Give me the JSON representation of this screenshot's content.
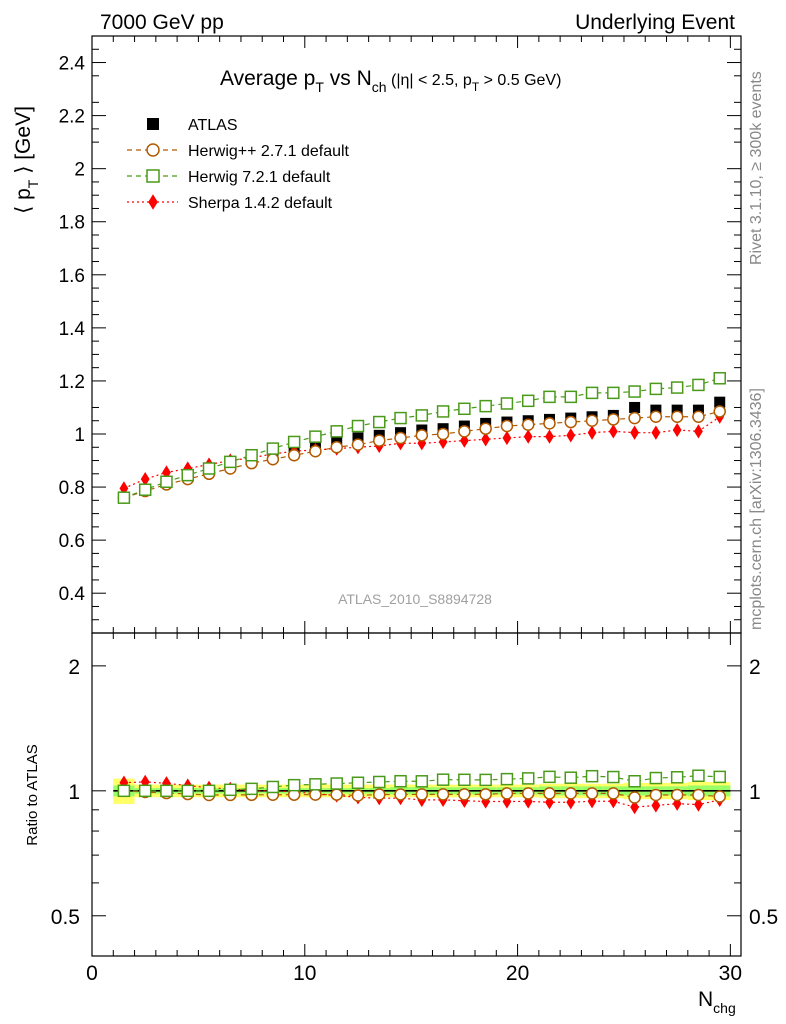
{
  "header": {
    "left": "7000 GeV pp",
    "right": "Underlying Event"
  },
  "side": {
    "rivet": "Rivet 3.1.10, ≥ 300k events",
    "mcplots": "mcplots.cern.ch [arXiv:1306.3436]"
  },
  "chart_data": {
    "type": "scatter",
    "title": {
      "t1": "Average p",
      "t1sub": "T",
      "t2": " vs N",
      "t2sub": "ch",
      "t3": " (|η| < 2.5, p",
      "t3sub": "T",
      "t4": " > 0.5 GeV)"
    },
    "ylabel": {
      "a": "⟨ p",
      "sub": "T",
      "b": " ⟩ [GeV]"
    },
    "ratio_ylabel": "Ratio to ATLAS",
    "xlabel": {
      "main": "N",
      "sub": "chg"
    },
    "analysis_id": "ATLAS_2010_S8894728",
    "xlim": [
      0,
      30.5
    ],
    "ylim": [
      0.25,
      2.5
    ],
    "ratio_ylim": [
      0.4,
      2.4
    ],
    "ratio_log": true,
    "x_ticks": [
      "0",
      "10",
      "20",
      "30"
    ],
    "y_ticks": [
      "0.4",
      "0.6",
      "0.8",
      "1",
      "1.2",
      "1.4",
      "1.6",
      "1.8",
      "2",
      "2.2",
      "2.4"
    ],
    "ratio_ticks": [
      "0.5",
      "1",
      "2"
    ],
    "x": [
      1.5,
      2.5,
      3.5,
      4.5,
      5.5,
      6.5,
      7.5,
      8.5,
      9.5,
      10.5,
      11.5,
      12.5,
      13.5,
      14.5,
      15.5,
      16.5,
      17.5,
      18.5,
      19.5,
      20.5,
      21.5,
      22.5,
      23.5,
      24.5,
      25.5,
      26.5,
      27.5,
      28.5,
      29.5
    ],
    "series": [
      {
        "name": "ATLAS",
        "marker": "square-filled",
        "color": "#000000",
        "values": [
          0.76,
          0.79,
          0.82,
          0.845,
          0.87,
          0.89,
          0.91,
          0.925,
          0.94,
          0.955,
          0.97,
          0.985,
          0.995,
          1.005,
          1.015,
          1.02,
          1.03,
          1.04,
          1.045,
          1.05,
          1.055,
          1.06,
          1.065,
          1.07,
          1.1,
          1.09,
          1.09,
          1.09,
          1.12
        ]
      },
      {
        "name": "Herwig++ 2.7.1 default",
        "marker": "circle-open",
        "color": "#b25a00",
        "values": [
          0.76,
          0.785,
          0.81,
          0.83,
          0.85,
          0.87,
          0.89,
          0.905,
          0.92,
          0.935,
          0.95,
          0.96,
          0.975,
          0.985,
          0.995,
          1.0,
          1.01,
          1.02,
          1.03,
          1.035,
          1.04,
          1.045,
          1.05,
          1.055,
          1.06,
          1.065,
          1.065,
          1.065,
          1.085
        ]
      },
      {
        "name": "Herwig 7.2.1 default",
        "marker": "square-open",
        "color": "#4a9a1a",
        "values": [
          0.76,
          0.79,
          0.82,
          0.845,
          0.87,
          0.895,
          0.92,
          0.945,
          0.97,
          0.99,
          1.01,
          1.03,
          1.045,
          1.06,
          1.07,
          1.085,
          1.095,
          1.105,
          1.115,
          1.125,
          1.14,
          1.14,
          1.155,
          1.155,
          1.16,
          1.17,
          1.175,
          1.185,
          1.21
        ]
      },
      {
        "name": "Sherpa 1.4.2 default",
        "marker": "diamond-filled",
        "color": "#ff0000",
        "values": [
          0.795,
          0.83,
          0.855,
          0.87,
          0.885,
          0.9,
          0.91,
          0.925,
          0.935,
          0.94,
          0.945,
          0.95,
          0.955,
          0.965,
          0.965,
          0.97,
          0.975,
          0.98,
          0.985,
          0.99,
          0.99,
          0.995,
          1.005,
          1.01,
          1.005,
          1.005,
          1.015,
          1.01,
          1.065
        ]
      }
    ],
    "ratio_band": {
      "outer_color": "#ffff66",
      "inner_color": "#99ff66",
      "outer": [
        0.07,
        0.035,
        0.035,
        0.035,
        0.035,
        0.035,
        0.035,
        0.035,
        0.035,
        0.035,
        0.035,
        0.035,
        0.035,
        0.035,
        0.035,
        0.035,
        0.035,
        0.035,
        0.035,
        0.035,
        0.04,
        0.04,
        0.04,
        0.04,
        0.045,
        0.045,
        0.045,
        0.05,
        0.05
      ],
      "inner": [
        0.03,
        0.015,
        0.015,
        0.015,
        0.015,
        0.015,
        0.015,
        0.015,
        0.015,
        0.015,
        0.015,
        0.015,
        0.015,
        0.02,
        0.02,
        0.02,
        0.02,
        0.02,
        0.02,
        0.02,
        0.025,
        0.025,
        0.025,
        0.025,
        0.025,
        0.025,
        0.025,
        0.03,
        0.03
      ]
    }
  }
}
